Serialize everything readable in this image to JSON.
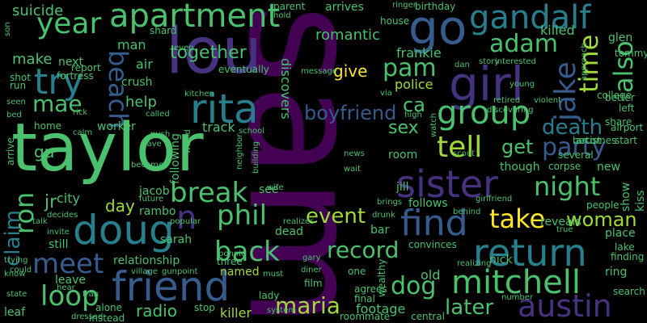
{
  "palette": {
    "background": "#000000",
    "colors": [
      "#440154",
      "#46327e",
      "#365c8d",
      "#277f8e",
      "#1fa187",
      "#4ac16d",
      "#a0da39",
      "#fde725"
    ]
  },
  "words": [
    {
      "text": "sam",
      "color": "#440154"
    },
    {
      "text": "taylor",
      "color": "#4ac16d"
    },
    {
      "text": "lou",
      "color": "#46327e"
    },
    {
      "text": "go",
      "color": "#365c8d"
    },
    {
      "text": "girl",
      "color": "#46327e"
    },
    {
      "text": "rita",
      "color": "#277f8e"
    },
    {
      "text": "doug",
      "color": "#277f8e"
    },
    {
      "text": "friend",
      "color": "#365c8d"
    },
    {
      "text": "apartment",
      "color": "#4ac16d"
    },
    {
      "text": "gandalf",
      "color": "#277f8e"
    },
    {
      "text": "sister",
      "color": "#46327e"
    },
    {
      "text": "find",
      "color": "#365c8d"
    },
    {
      "text": "return",
      "color": "#277f8e"
    },
    {
      "text": "mitchell",
      "color": "#4ac16d"
    },
    {
      "text": "austin",
      "color": "#46327e"
    },
    {
      "text": "year",
      "color": "#4ac16d"
    },
    {
      "text": "try",
      "color": "#277f8e"
    },
    {
      "text": "group",
      "color": "#4ac16d"
    },
    {
      "text": "jake",
      "color": "#365c8d"
    },
    {
      "text": "time",
      "color": "#a0da39"
    },
    {
      "text": "also",
      "color": "#4ac16d"
    },
    {
      "text": "party",
      "color": "#365c8d"
    },
    {
      "text": "tell",
      "color": "#a0da39"
    },
    {
      "text": "night",
      "color": "#4ac16d"
    },
    {
      "text": "take",
      "color": "#fde725"
    },
    {
      "text": "woman",
      "color": "#a0da39"
    },
    {
      "text": "break",
      "color": "#4ac16d"
    },
    {
      "text": "phil",
      "color": "#4ac16d"
    },
    {
      "text": "back",
      "color": "#4ac16d"
    },
    {
      "text": "meet",
      "color": "#365c8d"
    },
    {
      "text": "loop",
      "color": "#4ac16d"
    },
    {
      "text": "dog",
      "color": "#4ac16d"
    },
    {
      "text": "death",
      "color": "#277f8e"
    },
    {
      "text": "pam",
      "color": "#4ac16d"
    },
    {
      "text": "adam",
      "color": "#4ac16d"
    },
    {
      "text": "beach",
      "color": "#365c8d"
    },
    {
      "text": "mae",
      "color": "#4ac16d"
    },
    {
      "text": "ron",
      "color": "#4ac16d"
    },
    {
      "text": "claim",
      "color": "#277f8e"
    },
    {
      "text": "n",
      "color": "#46327e"
    },
    {
      "text": "record",
      "color": "#4ac16d"
    },
    {
      "text": "event",
      "color": "#a0da39"
    },
    {
      "text": "maria",
      "color": "#a0da39"
    },
    {
      "text": "later",
      "color": "#4ac16d"
    },
    {
      "text": "together",
      "color": "#4ac16d"
    },
    {
      "text": "romantic",
      "color": "#4ac16d"
    },
    {
      "text": "boyfriend",
      "color": "#365c8d"
    },
    {
      "text": "ca",
      "color": "#4ac16d"
    },
    {
      "text": "get",
      "color": "#4ac16d"
    },
    {
      "text": "sex",
      "color": "#4ac16d"
    },
    {
      "text": "help",
      "color": "#4ac16d"
    },
    {
      "text": "jr",
      "color": "#4ac16d"
    },
    {
      "text": "gu",
      "color": "#4ac16d"
    },
    {
      "text": "day",
      "color": "#a0da39"
    },
    {
      "text": "radio",
      "color": "#4ac16d"
    },
    {
      "text": "suicide",
      "color": "#4ac16d"
    },
    {
      "text": "make",
      "color": "#4ac16d"
    },
    {
      "text": "frankie",
      "color": "#4ac16d"
    },
    {
      "text": "police",
      "color": "#a0da39"
    },
    {
      "text": "give",
      "color": "#fde725"
    },
    {
      "text": "discovers",
      "color": "#4ac16d"
    },
    {
      "text": "man",
      "color": "#4ac16d"
    },
    {
      "text": "air",
      "color": "#4ac16d"
    },
    {
      "text": "next",
      "color": "#4ac16d"
    },
    {
      "text": "crush",
      "color": "#4ac16d"
    },
    {
      "text": "worker",
      "color": "#4ac16d"
    },
    {
      "text": "home",
      "color": "#4ac16d"
    },
    {
      "text": "city",
      "color": "#4ac16d"
    },
    {
      "text": "jacob",
      "color": "#4ac16d"
    },
    {
      "text": "rambo",
      "color": "#4ac16d"
    },
    {
      "text": "track",
      "color": "#4ac16d"
    },
    {
      "text": "following",
      "color": "#4ac16d"
    },
    {
      "text": "relationship",
      "color": "#4ac16d"
    },
    {
      "text": "killer",
      "color": "#a0da39"
    },
    {
      "text": "named",
      "color": "#a0da39"
    },
    {
      "text": "dead",
      "color": "#4ac16d"
    },
    {
      "text": "still",
      "color": "#4ac16d"
    },
    {
      "text": "leave",
      "color": "#4ac16d"
    },
    {
      "text": "leaf",
      "color": "#4ac16d"
    },
    {
      "text": "old",
      "color": "#4ac16d"
    },
    {
      "text": "footage",
      "color": "#4ac16d"
    },
    {
      "text": "nick",
      "color": "#4ac16d"
    },
    {
      "text": "reveals",
      "color": "#4ac16d"
    },
    {
      "text": "place",
      "color": "#4ac16d"
    },
    {
      "text": "lake",
      "color": "#4ac16d"
    },
    {
      "text": "finding",
      "color": "#4ac16d"
    },
    {
      "text": "ring",
      "color": "#4ac16d"
    },
    {
      "text": "show",
      "color": "#4ac16d"
    },
    {
      "text": "kiss",
      "color": "#4ac16d"
    },
    {
      "text": "new",
      "color": "#4ac16d"
    },
    {
      "text": "though",
      "color": "#4ac16d"
    },
    {
      "text": "room",
      "color": "#4ac16d"
    },
    {
      "text": "jill",
      "color": "#4ac16d"
    },
    {
      "text": "follows",
      "color": "#4ac16d"
    },
    {
      "text": "bar",
      "color": "#4ac16d"
    },
    {
      "text": "see",
      "color": "#4ac16d"
    },
    {
      "text": "sarah",
      "color": "#4ac16d"
    },
    {
      "text": "three",
      "color": "#4ac16d"
    },
    {
      "text": "film",
      "color": "#4ac16d"
    },
    {
      "text": "convinces",
      "color": "#4ac16d"
    },
    {
      "text": "alone",
      "color": "#4ac16d"
    },
    {
      "text": "instead",
      "color": "#4ac16d"
    },
    {
      "text": "stop",
      "color": "#4ac16d"
    },
    {
      "text": "lady",
      "color": "#4ac16d"
    },
    {
      "text": "roommate",
      "color": "#4ac16d"
    },
    {
      "text": "central",
      "color": "#4ac16d"
    },
    {
      "text": "agrees",
      "color": "#4ac16d"
    },
    {
      "text": "final",
      "color": "#4ac16d"
    },
    {
      "text": "one",
      "color": "#4ac16d"
    },
    {
      "text": "wealthy",
      "color": "#4ac16d"
    },
    {
      "text": "number",
      "color": "#4ac16d"
    },
    {
      "text": "people",
      "color": "#4ac16d"
    },
    {
      "text": "killed",
      "color": "#4ac16d"
    },
    {
      "text": "glen",
      "color": "#4ac16d"
    },
    {
      "text": "tommy",
      "color": "#4ac16d"
    },
    {
      "text": "better",
      "color": "#4ac16d"
    },
    {
      "text": "college",
      "color": "#4ac16d"
    },
    {
      "text": "left",
      "color": "#4ac16d"
    },
    {
      "text": "share",
      "color": "#4ac16d"
    },
    {
      "text": "airport",
      "color": "#4ac16d"
    },
    {
      "text": "start",
      "color": "#4ac16d"
    },
    {
      "text": "becomes",
      "color": "#4ac16d"
    },
    {
      "text": "artist",
      "color": "#4ac16d"
    },
    {
      "text": "corpse",
      "color": "#4ac16d"
    },
    {
      "text": "several",
      "color": "#4ac16d"
    },
    {
      "text": "true",
      "color": "#4ac16d"
    },
    {
      "text": "search",
      "color": "#4ac16d"
    },
    {
      "text": "arrives",
      "color": "#4ac16d"
    },
    {
      "text": "arrive",
      "color": "#4ac16d"
    },
    {
      "text": "birthday",
      "color": "#4ac16d"
    },
    {
      "text": "house",
      "color": "#4ac16d"
    },
    {
      "text": "parent",
      "color": "#4ac16d"
    },
    {
      "text": "hold",
      "color": "#4ac16d"
    },
    {
      "text": "shard",
      "color": "#4ac16d"
    },
    {
      "text": "even",
      "color": "#4ac16d"
    },
    {
      "text": "eventually",
      "color": "#4ac16d"
    },
    {
      "text": "report",
      "color": "#4ac16d"
    },
    {
      "text": "fortress",
      "color": "#4ac16d"
    },
    {
      "text": "shot",
      "color": "#4ac16d"
    },
    {
      "text": "run",
      "color": "#4ac16d"
    },
    {
      "text": "seen",
      "color": "#4ac16d"
    },
    {
      "text": "bed",
      "color": "#4ac16d"
    },
    {
      "text": "rick",
      "color": "#4ac16d"
    },
    {
      "text": "kitchen",
      "color": "#4ac16d"
    },
    {
      "text": "called",
      "color": "#4ac16d"
    },
    {
      "text": "push",
      "color": "#4ac16d"
    },
    {
      "text": "cave",
      "color": "#4ac16d"
    },
    {
      "text": "become",
      "color": "#4ac16d"
    },
    {
      "text": "future",
      "color": "#4ac16d"
    },
    {
      "text": "popular",
      "color": "#4ac16d"
    },
    {
      "text": "village",
      "color": "#4ac16d"
    },
    {
      "text": "gunpoint",
      "color": "#4ac16d"
    },
    {
      "text": "bonnie",
      "color": "#4ac16d"
    },
    {
      "text": "gary",
      "color": "#4ac16d"
    },
    {
      "text": "must",
      "color": "#4ac16d"
    },
    {
      "text": "system",
      "color": "#4ac16d"
    },
    {
      "text": "diner",
      "color": "#4ac16d"
    },
    {
      "text": "realizes",
      "color": "#4ac16d"
    },
    {
      "text": "brings",
      "color": "#4ac16d"
    },
    {
      "text": "drunk",
      "color": "#4ac16d"
    },
    {
      "text": "behind",
      "color": "#4ac16d"
    },
    {
      "text": "girlfriend",
      "color": "#4ac16d"
    },
    {
      "text": "wait",
      "color": "#4ac16d"
    },
    {
      "text": "news",
      "color": "#4ac16d"
    },
    {
      "text": "scout",
      "color": "#4ac16d"
    },
    {
      "text": "high",
      "color": "#4ac16d"
    },
    {
      "text": "watch",
      "color": "#4ac16d"
    },
    {
      "text": "via",
      "color": "#4ac16d"
    },
    {
      "text": "message",
      "color": "#4ac16d"
    },
    {
      "text": "young",
      "color": "#4ac16d"
    },
    {
      "text": "retired",
      "color": "#4ac16d"
    },
    {
      "text": "violent",
      "color": "#4ac16d"
    },
    {
      "text": "discovering",
      "color": "#4ac16d"
    },
    {
      "text": "interested",
      "color": "#4ac16d"
    },
    {
      "text": "story",
      "color": "#4ac16d"
    },
    {
      "text": "dan",
      "color": "#4ac16d"
    },
    {
      "text": "approach",
      "color": "#4ac16d"
    },
    {
      "text": "school",
      "color": "#4ac16d"
    },
    {
      "text": "neighbor",
      "color": "#4ac16d"
    },
    {
      "text": "building",
      "color": "#4ac16d"
    },
    {
      "text": "wife",
      "color": "#4ac16d"
    },
    {
      "text": "calm",
      "color": "#4ac16d"
    },
    {
      "text": "decides",
      "color": "#4ac16d"
    },
    {
      "text": "talk",
      "color": "#4ac16d"
    },
    {
      "text": "invite",
      "color": "#4ac16d"
    },
    {
      "text": "trying",
      "color": "#4ac16d"
    },
    {
      "text": "could",
      "color": "#4ac16d"
    },
    {
      "text": "state",
      "color": "#4ac16d"
    },
    {
      "text": "fran",
      "color": "#4ac16d"
    },
    {
      "text": "dressed",
      "color": "#4ac16d"
    },
    {
      "text": "hear",
      "color": "#4ac16d"
    },
    {
      "text": "would",
      "color": "#4ac16d"
    },
    {
      "text": "son",
      "color": "#4ac16d"
    },
    {
      "text": "ringer",
      "color": "#4ac16d"
    },
    {
      "text": "realizing",
      "color": "#4ac16d"
    },
    {
      "text": "know",
      "color": "#4ac16d"
    }
  ]
}
